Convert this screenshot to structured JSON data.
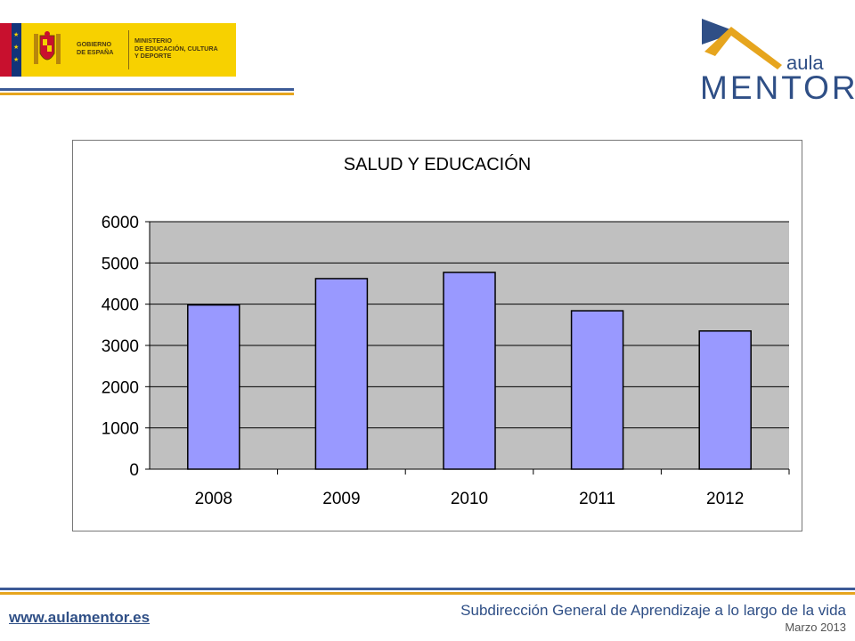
{
  "header": {
    "gov_label": "GOBIERNO\nDE ESPAÑA",
    "ministry_label": "MINISTERIO\nDE EDUCACIÓN, CULTURA\nY DEPORTE",
    "brand_small": "aula",
    "brand_large": "MENTOR"
  },
  "chart_data": {
    "type": "bar",
    "title": "SALUD Y EDUCACIÓN",
    "categories": [
      "2008",
      "2009",
      "2010",
      "2011",
      "2012"
    ],
    "values": [
      3980,
      4620,
      4770,
      3840,
      3350
    ],
    "ylim": [
      0,
      6000
    ],
    "yticks": [
      "0",
      "1000",
      "2000",
      "3000",
      "4000",
      "5000",
      "6000"
    ],
    "xlabel": "",
    "ylabel": "",
    "grid": true,
    "legend": "none",
    "colors": {
      "bar": "#9999ff",
      "plot_bg": "#c0c0c0",
      "bar_border": "#000000"
    }
  },
  "footer": {
    "website": "www.aulamentor.es",
    "organization": "Subdirección General de Aprendizaje a lo largo de la vida",
    "date": "Marzo 2013"
  }
}
